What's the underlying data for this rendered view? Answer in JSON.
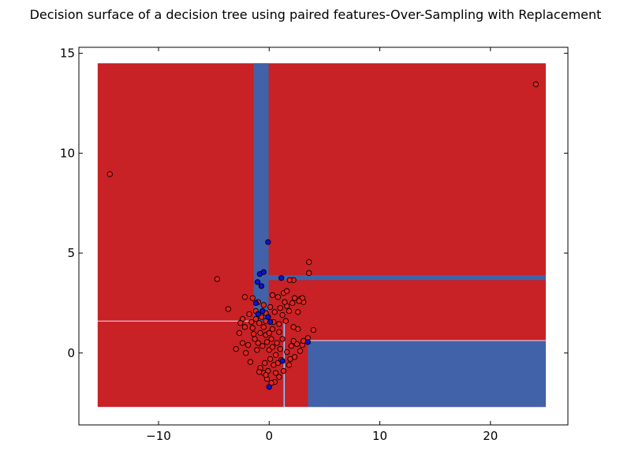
{
  "chart_data": {
    "type": "scatter",
    "title": "Decision surface of a decision tree using paired features-Over-Sampling with Replacement",
    "xlim": [
      -17.2,
      27.0
    ],
    "ylim": [
      -3.6,
      15.3
    ],
    "x_ticks": [
      -10,
      0,
      10,
      20
    ],
    "x_tick_labels": [
      "−10",
      "0",
      "10",
      "20"
    ],
    "y_ticks": [
      0,
      5,
      10,
      15
    ],
    "y_tick_labels": [
      "0",
      "5",
      "10",
      "15"
    ],
    "grid": false,
    "legend": "none",
    "colors": {
      "class_0_region": "#c82126",
      "class_1_region": "#4162a8",
      "class_0_point": "#e8241e",
      "class_1_point": "#1010d8",
      "split_line": "#e6e6f5"
    },
    "decision_regions": [
      {
        "class": 0,
        "x": [
          -15.5,
          25.0
        ],
        "y": [
          -2.7,
          14.5
        ]
      },
      {
        "class": 1,
        "x": [
          -1.4,
          -0.05
        ],
        "y": [
          1.6,
          14.5
        ]
      },
      {
        "class": 1,
        "x": [
          -0.05,
          25.0
        ],
        "y": [
          3.65,
          3.9
        ]
      },
      {
        "class": 1,
        "x": [
          3.5,
          25.0
        ],
        "y": [
          -2.7,
          0.6
        ]
      },
      {
        "class": 1,
        "x": [
          1.25,
          1.45
        ],
        "y": [
          -2.7,
          1.5
        ]
      }
    ],
    "split_lines": [
      {
        "orientation": "horizontal",
        "value": 1.6,
        "from": -15.5,
        "to": -1.4
      },
      {
        "orientation": "vertical",
        "value": 1.35,
        "from": -2.7,
        "to": 1.5
      },
      {
        "orientation": "horizontal",
        "value": 0.62,
        "from": 3.5,
        "to": 25.0
      }
    ],
    "series": [
      {
        "class": 0,
        "points": [
          [
            -14.4,
            8.95
          ],
          [
            24.1,
            13.45
          ],
          [
            -4.7,
            3.7
          ],
          [
            -3.7,
            2.2
          ],
          [
            3.6,
            4.55
          ],
          [
            3.6,
            4.0
          ],
          [
            2.2,
            3.65
          ],
          [
            1.85,
            3.65
          ],
          [
            -2.2,
            2.8
          ],
          [
            -1.5,
            2.75
          ],
          [
            -1.0,
            2.55
          ],
          [
            -0.5,
            2.4
          ],
          [
            0.3,
            2.9
          ],
          [
            0.8,
            2.8
          ],
          [
            1.3,
            3.0
          ],
          [
            1.6,
            3.1
          ],
          [
            2.3,
            2.75
          ],
          [
            2.8,
            2.7
          ],
          [
            3.1,
            2.55
          ],
          [
            2.6,
            2.05
          ],
          [
            1.8,
            2.1
          ],
          [
            1.0,
            2.25
          ],
          [
            0.5,
            2.05
          ],
          [
            -0.3,
            2.0
          ],
          [
            -1.2,
            2.1
          ],
          [
            -1.8,
            1.95
          ],
          [
            -2.4,
            1.7
          ],
          [
            -2.6,
            1.5
          ],
          [
            -2.2,
            1.3
          ],
          [
            -1.5,
            1.25
          ],
          [
            -0.9,
            1.5
          ],
          [
            -0.3,
            1.6
          ],
          [
            0.4,
            1.55
          ],
          [
            0.9,
            1.45
          ],
          [
            1.2,
            1.9
          ],
          [
            1.6,
            2.35
          ],
          [
            2.1,
            2.5
          ],
          [
            3.0,
            2.75
          ],
          [
            4.0,
            1.15
          ],
          [
            2.0,
            0.35
          ],
          [
            2.5,
            0.45
          ],
          [
            3.0,
            0.4
          ],
          [
            3.5,
            0.75
          ],
          [
            2.8,
            0.1
          ],
          [
            2.3,
            -0.2
          ],
          [
            1.8,
            -0.6
          ],
          [
            1.3,
            -0.9
          ],
          [
            0.9,
            -1.2
          ],
          [
            0.5,
            -1.45
          ],
          [
            0.2,
            -1.5
          ],
          [
            -0.2,
            -1.3
          ],
          [
            -0.5,
            -1.0
          ],
          [
            -0.8,
            -0.75
          ],
          [
            -0.4,
            -0.5
          ],
          [
            0.1,
            -0.3
          ],
          [
            0.6,
            -0.1
          ],
          [
            1.0,
            0.2
          ],
          [
            0.7,
            0.5
          ],
          [
            0.2,
            0.7
          ],
          [
            -0.3,
            0.9
          ],
          [
            -0.8,
            1.0
          ],
          [
            -1.3,
            0.7
          ],
          [
            -1.9,
            0.4
          ],
          [
            -2.4,
            0.5
          ],
          [
            -3.0,
            0.2
          ],
          [
            -2.1,
            0.0
          ],
          [
            -1.7,
            -0.45
          ],
          [
            -1.1,
            0.15
          ],
          [
            -0.6,
            0.35
          ],
          [
            0.0,
            0.15
          ],
          [
            0.4,
            -0.6
          ],
          [
            -0.1,
            -0.9
          ],
          [
            1.6,
            0.05
          ],
          [
            2.2,
            0.6
          ],
          [
            0.9,
            1.05
          ],
          [
            0.3,
            1.2
          ],
          [
            -0.5,
            1.3
          ],
          [
            -1.0,
            0.5
          ],
          [
            1.5,
            1.6
          ],
          [
            2.6,
            1.2
          ],
          [
            3.1,
            0.6
          ],
          [
            0.8,
            -0.5
          ],
          [
            -0.2,
            0.55
          ],
          [
            -1.6,
            1.55
          ],
          [
            -0.7,
            1.8
          ],
          [
            0.1,
            2.3
          ],
          [
            1.4,
            2.55
          ],
          [
            2.7,
            2.6
          ],
          [
            -0.9,
            -0.95
          ],
          [
            0.6,
            -1.0
          ],
          [
            1.1,
            -0.35
          ],
          [
            1.9,
            -0.3
          ],
          [
            -2.7,
            1.0
          ],
          [
            -1.4,
            0.95
          ],
          [
            0.0,
            1.0
          ],
          [
            1.2,
            0.7
          ],
          [
            2.2,
            1.3
          ],
          [
            -0.3,
            -1.1
          ],
          [
            0.3,
            0.3
          ],
          [
            -1.2,
            1.7
          ]
        ]
      },
      {
        "class": 1,
        "points": [
          [
            -0.1,
            5.55
          ],
          [
            -0.85,
            3.95
          ],
          [
            -0.5,
            4.05
          ],
          [
            -1.05,
            3.55
          ],
          [
            -0.7,
            3.35
          ],
          [
            1.1,
            3.75
          ],
          [
            -1.2,
            2.5
          ],
          [
            -0.6,
            2.1
          ],
          [
            -1.0,
            1.95
          ],
          [
            -0.1,
            1.8
          ],
          [
            0.1,
            1.55
          ],
          [
            1.2,
            -0.4
          ],
          [
            3.5,
            0.55
          ],
          [
            0.0,
            -1.7
          ]
        ]
      }
    ]
  }
}
